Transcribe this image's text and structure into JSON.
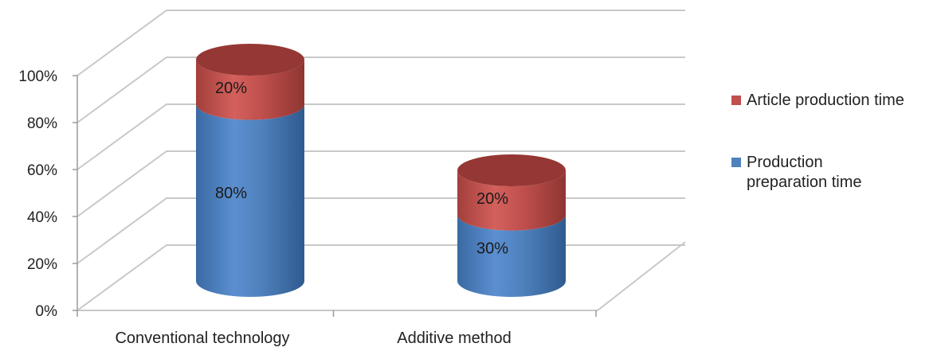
{
  "chart_data": {
    "type": "bar",
    "style": "3d-stacked-cylinder",
    "title": "",
    "xlabel": "",
    "ylabel": "",
    "ylim": [
      0,
      100
    ],
    "y_ticks": [
      "0%",
      "20%",
      "40%",
      "60%",
      "80%",
      "100%"
    ],
    "categories": [
      "Conventional technology",
      "Additive method"
    ],
    "series": [
      {
        "name": "Production preparation time",
        "values": [
          80,
          30
        ],
        "color": "#4f81bd",
        "labels": [
          "80%",
          "30%"
        ]
      },
      {
        "name": "Article production time",
        "values": [
          20,
          20
        ],
        "color": "#c0504d",
        "labels": [
          "20%",
          "20%"
        ]
      }
    ],
    "grid": true,
    "legend": {
      "position": "right",
      "entries": [
        {
          "series": 1,
          "lines": [
            "Article production time"
          ]
        },
        {
          "series": 0,
          "lines": [
            "Production",
            "preparation time"
          ]
        }
      ]
    }
  }
}
